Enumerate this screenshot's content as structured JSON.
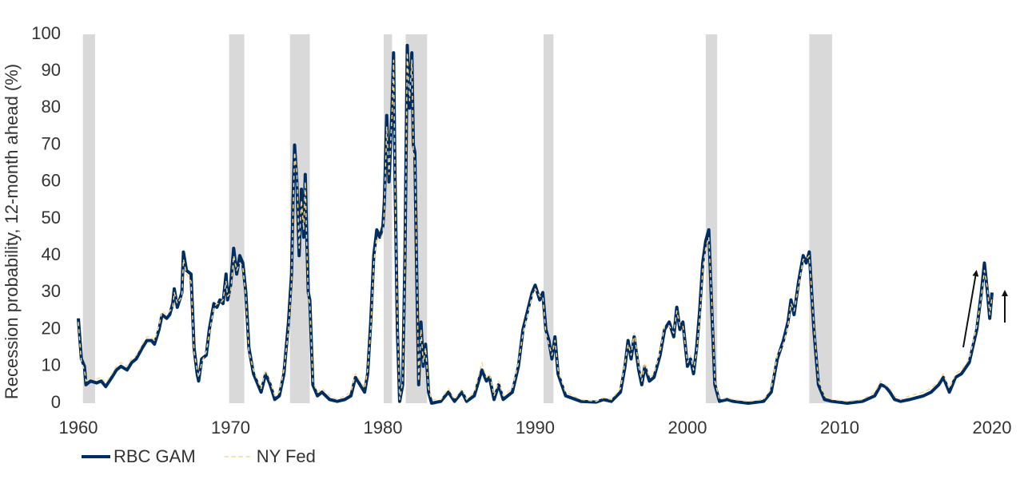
{
  "chart_data": {
    "type": "line",
    "y_label": "Recession probability, 12-month ahead (%)",
    "xlim": [
      1960,
      2020
    ],
    "xticks": [
      1960,
      1970,
      1980,
      1990,
      2000,
      2010,
      2020
    ],
    "ylim": [
      0,
      100
    ],
    "yticks": [
      0,
      10,
      20,
      30,
      40,
      50,
      60,
      70,
      80,
      90,
      100
    ],
    "shaded_periods": [
      [
        1960.3,
        1961.1
      ],
      [
        1969.9,
        1970.9
      ],
      [
        1973.9,
        1975.2
      ],
      [
        1980.05,
        1980.6
      ],
      [
        1981.5,
        1982.9
      ],
      [
        1990.55,
        1991.2
      ],
      [
        2001.2,
        2001.95
      ],
      [
        2008.0,
        2009.5
      ]
    ],
    "shade_color": "#d9d9d9",
    "x": [
      1960.0,
      1960.2,
      1960.4,
      1960.5,
      1960.8,
      1961.2,
      1961.5,
      1961.8,
      1962.2,
      1962.5,
      1962.8,
      1963.2,
      1963.5,
      1963.8,
      1964.2,
      1964.5,
      1964.8,
      1965.0,
      1965.3,
      1965.5,
      1965.8,
      1966.0,
      1966.2,
      1966.3,
      1966.5,
      1966.8,
      1966.9,
      1967.1,
      1967.4,
      1967.6,
      1967.8,
      1967.9,
      1968.1,
      1968.4,
      1968.6,
      1968.9,
      1969.1,
      1969.3,
      1969.5,
      1969.7,
      1969.8,
      1970.0,
      1970.2,
      1970.4,
      1970.6,
      1970.8,
      1971.0,
      1971.2,
      1971.5,
      1971.8,
      1972.0,
      1972.3,
      1972.6,
      1972.9,
      1973.2,
      1973.5,
      1973.8,
      1974.0,
      1974.1,
      1974.2,
      1974.35,
      1974.5,
      1974.65,
      1974.8,
      1974.9,
      1975.0,
      1975.1,
      1975.2,
      1975.4,
      1975.7,
      1976.0,
      1976.5,
      1977.0,
      1977.5,
      1977.9,
      1978.2,
      1978.5,
      1978.8,
      1979.0,
      1979.2,
      1979.4,
      1979.6,
      1979.8,
      1980.0,
      1980.1,
      1980.25,
      1980.4,
      1980.6,
      1980.7,
      1980.8,
      1980.95,
      1981.1,
      1981.3,
      1981.45,
      1981.6,
      1981.75,
      1981.9,
      1982.0,
      1982.1,
      1982.2,
      1982.35,
      1982.5,
      1982.65,
      1982.8,
      1983.0,
      1983.2,
      1983.8,
      1984.3,
      1984.7,
      1985.2,
      1985.5,
      1986.0,
      1986.5,
      1986.8,
      1987.0,
      1987.3,
      1987.6,
      1987.9,
      1988.5,
      1988.9,
      1989.2,
      1989.5,
      1989.8,
      1990.0,
      1990.3,
      1990.5,
      1990.7,
      1990.9,
      1991.1,
      1991.3,
      1991.5,
      1992.0,
      1993.0,
      1994.0,
      1994.5,
      1995.0,
      1995.6,
      1995.9,
      1996.1,
      1996.3,
      1996.5,
      1996.8,
      1997.0,
      1997.2,
      1997.5,
      1997.8,
      1998.2,
      1998.5,
      1998.8,
      1999.1,
      1999.3,
      1999.5,
      1999.7,
      2000.0,
      2000.2,
      2000.4,
      2000.6,
      2000.8,
      2001.0,
      2001.2,
      2001.4,
      2001.6,
      2001.8,
      2002.1,
      2002.6,
      2003.0,
      2004.0,
      2005.0,
      2005.5,
      2005.9,
      2006.3,
      2006.6,
      2006.8,
      2007.0,
      2007.3,
      2007.6,
      2007.8,
      2008.0,
      2008.3,
      2008.6,
      2009.0,
      2009.5,
      2010.5,
      2011.5,
      2012.3,
      2012.7,
      2013.0,
      2013.3,
      2013.6,
      2014.0,
      2014.6,
      2015.5,
      2016.0,
      2016.5,
      2016.8,
      2017.2,
      2017.6,
      2018.0,
      2018.5,
      2019.0,
      2019.3,
      2019.5,
      2019.7,
      2019.85,
      2020.0
    ],
    "series": [
      {
        "name": "RBC GAM",
        "color": "#002d62",
        "style": "solid",
        "values": [
          23,
          12,
          10,
          5,
          6,
          5.5,
          6,
          4.5,
          7,
          9,
          10,
          9,
          11,
          12,
          15,
          17,
          17,
          16,
          20,
          24,
          23,
          24,
          27,
          31,
          26,
          30,
          41,
          36,
          35,
          15,
          8,
          6,
          12,
          13,
          20,
          27,
          26,
          28,
          27,
          35,
          28,
          32,
          42,
          35,
          40,
          38,
          30,
          15,
          8,
          5,
          3,
          8,
          5,
          1,
          2,
          8,
          22,
          35,
          55,
          70,
          60,
          40,
          58,
          45,
          62,
          45,
          30,
          28,
          5,
          2,
          3,
          1,
          0.5,
          1,
          2,
          7,
          5,
          3,
          8,
          22,
          40,
          47,
          45,
          48,
          55,
          78,
          60,
          80,
          95,
          60,
          20,
          0.5,
          5,
          40,
          97,
          80,
          95,
          70,
          68,
          40,
          5,
          22,
          10,
          16,
          3,
          0,
          0.5,
          3,
          0.5,
          3,
          0.5,
          2,
          9,
          6,
          7,
          1,
          5,
          1,
          3,
          10,
          20,
          25,
          30,
          32,
          28,
          30,
          20,
          17,
          12,
          18,
          8,
          2,
          0.5,
          0.3,
          1,
          0.5,
          3,
          10,
          17,
          12,
          18,
          9,
          5,
          10,
          6,
          7,
          13,
          20,
          22,
          18,
          26,
          20,
          22,
          10,
          12,
          8,
          15,
          25,
          38,
          44,
          47,
          25,
          5,
          0.5,
          1,
          0.5,
          0,
          0.5,
          3,
          12,
          17,
          22,
          28,
          24,
          33,
          40,
          38,
          41,
          20,
          5,
          1,
          0.5,
          0,
          0.5,
          2,
          5,
          4.5,
          3,
          1,
          0.5,
          1,
          2,
          3,
          5,
          7,
          3,
          7,
          8,
          11,
          20,
          30,
          38,
          30,
          23,
          30
        ]
      },
      {
        "name": "NY Fed",
        "color": "#f5d78e",
        "style": "dashed",
        "values": [
          22,
          11,
          9,
          6,
          7,
          6.5,
          7,
          5.5,
          8,
          10,
          11,
          10,
          12,
          13,
          16,
          18,
          18,
          17,
          21,
          25,
          24,
          25,
          26,
          30,
          27,
          29,
          39,
          35,
          33,
          14,
          9,
          7,
          11,
          14,
          19,
          26,
          27,
          27,
          28,
          33,
          29,
          30,
          40,
          36,
          38,
          37,
          29,
          14,
          9,
          6,
          4,
          9,
          6,
          2,
          3,
          9,
          20,
          33,
          52,
          68,
          62,
          42,
          55,
          47,
          60,
          43,
          29,
          27,
          6,
          3,
          4,
          2,
          1,
          2,
          3,
          8,
          6,
          4,
          9,
          20,
          38,
          45,
          44,
          46,
          53,
          75,
          62,
          78,
          93,
          58,
          22,
          1,
          6,
          38,
          95,
          82,
          93,
          68,
          66,
          42,
          6,
          20,
          11,
          15,
          4,
          1,
          1,
          4,
          1,
          4,
          1,
          3,
          11,
          7,
          8,
          2,
          6,
          2,
          4,
          11,
          19,
          24,
          29,
          31,
          29,
          29,
          19,
          16,
          13,
          17,
          9,
          3,
          1,
          0.5,
          1.5,
          1,
          4,
          11,
          16,
          13,
          19,
          10,
          6,
          11,
          7,
          8,
          14,
          21,
          21,
          19,
          25,
          21,
          21,
          11,
          13,
          9,
          14,
          23,
          36,
          42,
          45,
          27,
          6,
          1,
          1.5,
          1,
          0.5,
          1,
          4,
          13,
          16,
          21,
          27,
          25,
          32,
          39,
          39,
          40,
          21,
          6,
          2,
          1,
          0.5,
          1,
          3,
          6,
          5,
          4,
          2,
          1,
          2,
          3,
          4,
          6,
          8,
          4,
          8,
          9,
          12,
          21,
          29,
          36,
          31,
          24,
          29
        ]
      }
    ]
  }
}
